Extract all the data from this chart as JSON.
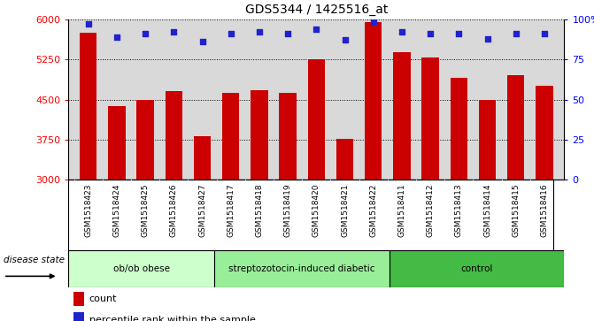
{
  "title": "GDS5344 / 1425516_at",
  "samples": [
    "GSM1518423",
    "GSM1518424",
    "GSM1518425",
    "GSM1518426",
    "GSM1518427",
    "GSM1518417",
    "GSM1518418",
    "GSM1518419",
    "GSM1518420",
    "GSM1518421",
    "GSM1518422",
    "GSM1518411",
    "GSM1518412",
    "GSM1518413",
    "GSM1518414",
    "GSM1518415",
    "GSM1518416"
  ],
  "counts": [
    5750,
    4380,
    4500,
    4650,
    3820,
    4630,
    4680,
    4620,
    5250,
    3760,
    5950,
    5380,
    5280,
    4900,
    4490,
    4950,
    4760
  ],
  "percentiles": [
    97,
    89,
    91,
    92,
    86,
    91,
    92,
    91,
    94,
    87,
    98,
    92,
    91,
    91,
    88,
    91,
    91
  ],
  "ylim_left": [
    3000,
    6000
  ],
  "ylim_right": [
    0,
    100
  ],
  "yticks_left": [
    3000,
    3750,
    4500,
    5250,
    6000
  ],
  "yticks_right": [
    0,
    25,
    50,
    75,
    100
  ],
  "bar_color": "#cc0000",
  "dot_color": "#2222cc",
  "background_color": "#d9d9d9",
  "group_colors": [
    "#ccffcc",
    "#99ee99",
    "#44bb44"
  ],
  "groups": [
    {
      "label": "ob/ob obese",
      "start": 0,
      "end": 5
    },
    {
      "label": "streptozotocin-induced diabetic",
      "start": 5,
      "end": 11
    },
    {
      "label": "control",
      "start": 11,
      "end": 17
    }
  ],
  "legend_count_label": "count",
  "legend_percentile_label": "percentile rank within the sample",
  "disease_state_label": "disease state"
}
